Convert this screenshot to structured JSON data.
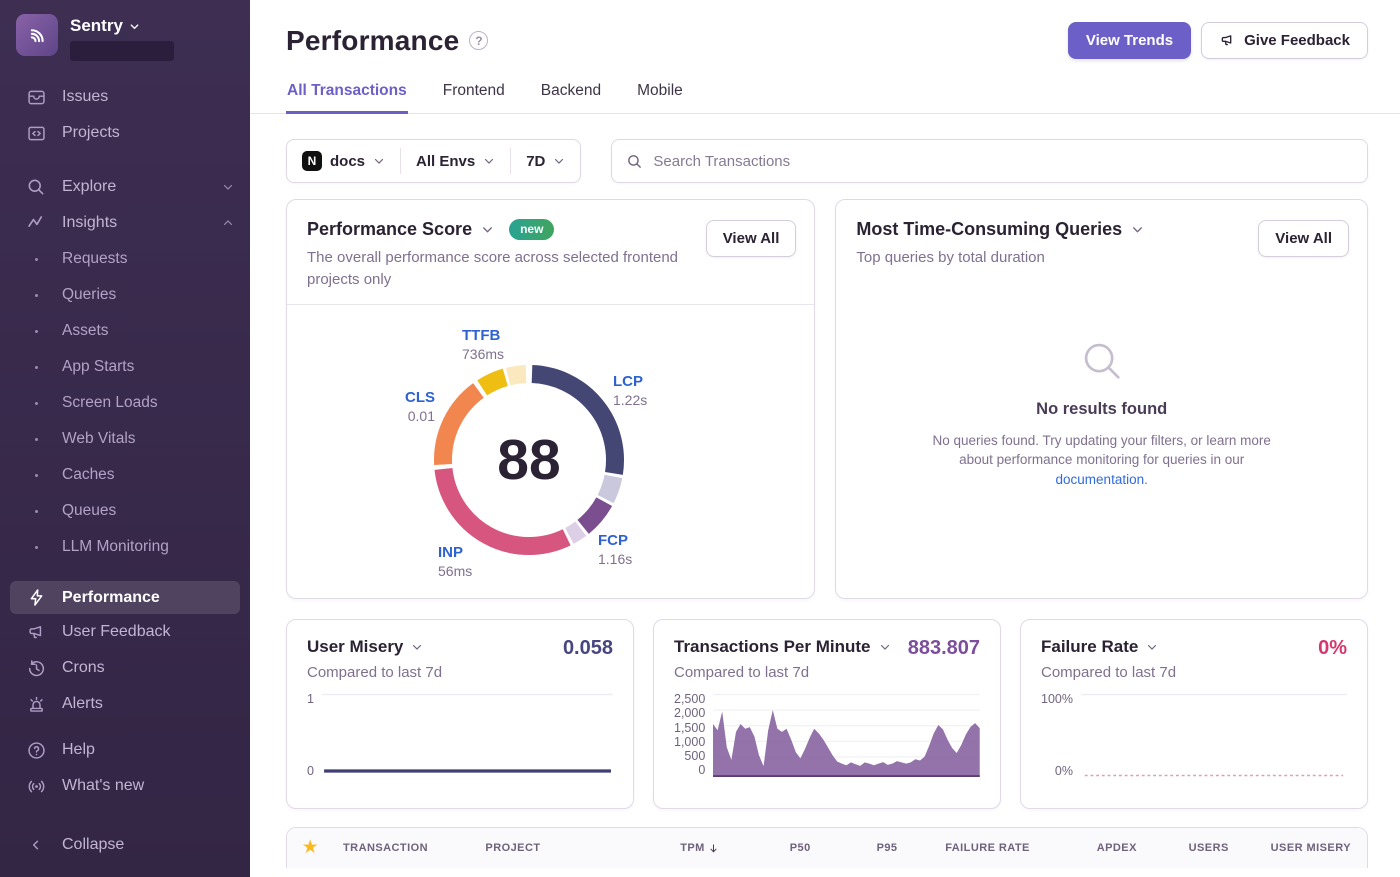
{
  "colors": {
    "accent_purple": "#6C5FC7",
    "sidebar_bg_top": "#3D2E52",
    "sidebar_bg_bottom": "#332544",
    "metric_label_blue": "#2D62D0",
    "link_blue": "#2F6BDF",
    "user_misery_value": "#464681",
    "tpm_value": "#7C4E9C",
    "failure_value": "#D5386E",
    "badge_gradient": [
      "#28A393",
      "#41A45F"
    ],
    "star_gold": "#FDB81B"
  },
  "sidebar": {
    "brand": "Sentry",
    "items_top": [
      {
        "label": "Issues"
      },
      {
        "label": "Projects"
      }
    ],
    "explore_label": "Explore",
    "insights_label": "Insights",
    "insights_children": [
      "Requests",
      "Queries",
      "Assets",
      "App Starts",
      "Screen Loads",
      "Web Vitals",
      "Caches",
      "Queues",
      "LLM Monitoring"
    ],
    "performance_label": "Performance",
    "tools": [
      "User Feedback",
      "Crons",
      "Alerts"
    ],
    "support": [
      "Help",
      "What's new"
    ],
    "collapse_label": "Collapse"
  },
  "header": {
    "title": "Performance",
    "view_trends_label": "View Trends",
    "give_feedback_label": "Give Feedback"
  },
  "tabs": [
    {
      "label": "All Transactions",
      "active": true
    },
    {
      "label": "Frontend",
      "active": false
    },
    {
      "label": "Backend",
      "active": false
    },
    {
      "label": "Mobile",
      "active": false
    }
  ],
  "filters": {
    "project_initial": "N",
    "project": "docs",
    "environment": "All Envs",
    "period": "7D",
    "search_placeholder": "Search Transactions"
  },
  "score_card": {
    "title": "Performance Score",
    "badge": "new",
    "view_all_label": "View All",
    "subtitle": "The overall performance score across selected frontend projects only"
  },
  "queries_card": {
    "title": "Most Time-Consuming Queries",
    "subtitle": "Top queries by total duration",
    "view_all_label": "View All",
    "empty_title": "No results found",
    "empty_body_prefix": "No queries found. Try updating your filters, or learn more about performance monitoring for queries in our",
    "empty_link": "documentation",
    "empty_body_suffix": "."
  },
  "mini_cards": [
    {
      "title": "User Misery",
      "value": "0.058",
      "subtitle": "Compared to last 7d"
    },
    {
      "title": "Transactions Per Minute",
      "value": "883.807",
      "subtitle": "Compared to last 7d"
    },
    {
      "title": "Failure Rate",
      "value": "0%",
      "subtitle": "Compared to last 7d"
    }
  ],
  "table": {
    "columns": [
      "TRANSACTION",
      "PROJECT",
      "TPM",
      "P50",
      "P95",
      "FAILURE RATE",
      "APDEX",
      "USERS",
      "USER MISERY"
    ],
    "sorted_column": "TPM",
    "sort_direction": "desc"
  },
  "chart_data": [
    {
      "id": "performance-score-ring",
      "type": "pie",
      "title": "Performance Score",
      "center_value": 88,
      "metrics": [
        {
          "name": "TTFB",
          "value": "736ms"
        },
        {
          "name": "LCP",
          "value": "1.22s"
        },
        {
          "name": "CLS",
          "value": "0.01"
        },
        {
          "name": "INP",
          "value": "56ms"
        },
        {
          "name": "FCP",
          "value": "1.16s"
        }
      ],
      "segments": [
        {
          "metric": "LCP",
          "portion": "score",
          "start_deg": 2,
          "end_deg": 99,
          "color": "#444674"
        },
        {
          "metric": "LCP",
          "portion": "remainder",
          "start_deg": 101,
          "end_deg": 117,
          "color": "#C9C8DD"
        },
        {
          "metric": "FCP",
          "portion": "score",
          "start_deg": 119,
          "end_deg": 141,
          "color": "#7A4E8F"
        },
        {
          "metric": "FCP",
          "portion": "remainder",
          "start_deg": 143,
          "end_deg": 152,
          "color": "#DDD0E6"
        },
        {
          "metric": "INP",
          "portion": "score",
          "start_deg": 154,
          "end_deg": 264,
          "color": "#D6567F"
        },
        {
          "metric": "CLS",
          "portion": "score",
          "start_deg": 267,
          "end_deg": 324,
          "color": "#F2864F"
        },
        {
          "metric": "TTFB",
          "portion": "score",
          "start_deg": 327,
          "end_deg": 344,
          "color": "#EFBE13"
        },
        {
          "metric": "TTFB",
          "portion": "remainder",
          "start_deg": 346,
          "end_deg": 358,
          "color": "#FAE8BE"
        }
      ]
    },
    {
      "id": "user-misery",
      "type": "line",
      "title": "User Misery",
      "current": 0.058,
      "ylim": [
        0,
        1
      ],
      "yticks": [
        "1",
        "0"
      ],
      "color": "#3F3F73",
      "dashed": false,
      "values": [
        0.058,
        0.058,
        0.058,
        0.058,
        0.058,
        0.058,
        0.058,
        0.058,
        0.058,
        0.058,
        0.058,
        0.058
      ]
    },
    {
      "id": "tpm",
      "type": "area",
      "title": "Transactions Per Minute",
      "current": 883.807,
      "ylim": [
        0,
        2500
      ],
      "yticks": [
        "2,500",
        "2,000",
        "1,500",
        "1,000",
        "500",
        "0"
      ],
      "color": "#7D5499",
      "values": [
        1650,
        1450,
        2050,
        900,
        500,
        1400,
        1650,
        1500,
        1550,
        1250,
        650,
        300,
        1450,
        2100,
        1500,
        1400,
        1500,
        1150,
        750,
        550,
        850,
        1200,
        1500,
        1350,
        1150,
        900,
        650,
        450,
        380,
        330,
        420,
        360,
        310,
        420,
        380,
        330,
        380,
        430,
        340,
        380,
        460,
        420,
        380,
        420,
        520,
        480,
        600,
        950,
        1350,
        1620,
        1480,
        1150,
        880,
        720,
        980,
        1320,
        1560,
        1680,
        1520
      ]
    },
    {
      "id": "failure-rate",
      "type": "line",
      "title": "Failure Rate",
      "current": "0%",
      "ylim": [
        0,
        100
      ],
      "yticks": [
        "100%",
        "0%"
      ],
      "color": "#E09DB7",
      "dashed": true,
      "values": [
        0,
        0,
        0,
        0,
        0,
        0,
        0,
        0,
        0,
        0,
        0,
        0
      ]
    }
  ]
}
